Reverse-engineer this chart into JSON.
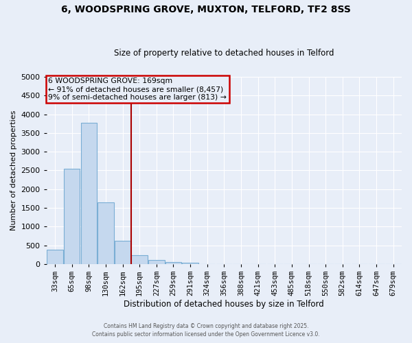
{
  "title": "6, WOODSPRING GROVE, MUXTON, TELFORD, TF2 8SS",
  "subtitle": "Size of property relative to detached houses in Telford",
  "xlabel": "Distribution of detached houses by size in Telford",
  "ylabel": "Number of detached properties",
  "bar_color": "#c5d8ee",
  "bar_edge_color": "#7aaed4",
  "categories": [
    "33sqm",
    "65sqm",
    "98sqm",
    "130sqm",
    "162sqm",
    "195sqm",
    "227sqm",
    "259sqm",
    "291sqm",
    "324sqm",
    "356sqm",
    "388sqm",
    "421sqm",
    "453sqm",
    "485sqm",
    "518sqm",
    "550sqm",
    "582sqm",
    "614sqm",
    "647sqm",
    "679sqm"
  ],
  "bar_values": [
    380,
    2550,
    3780,
    1650,
    620,
    240,
    100,
    50,
    30,
    0,
    0,
    0,
    0,
    0,
    0,
    0,
    0,
    0,
    0,
    0,
    0
  ],
  "ylim": [
    0,
    5000
  ],
  "yticks": [
    0,
    500,
    1000,
    1500,
    2000,
    2500,
    3000,
    3500,
    4000,
    4500,
    5000
  ],
  "vline_color": "#aa0000",
  "annotation_text_line1": "6 WOODSPRING GROVE: 169sqm",
  "annotation_text_line2": "← 91% of detached houses are smaller (8,457)",
  "annotation_text_line3": "9% of semi-detached houses are larger (813) →",
  "annotation_box_color": "#cc0000",
  "background_color": "#e8eef8",
  "grid_color": "#ffffff",
  "footer1": "Contains HM Land Registry data © Crown copyright and database right 2025.",
  "footer2": "Contains public sector information licensed under the Open Government Licence v3.0."
}
